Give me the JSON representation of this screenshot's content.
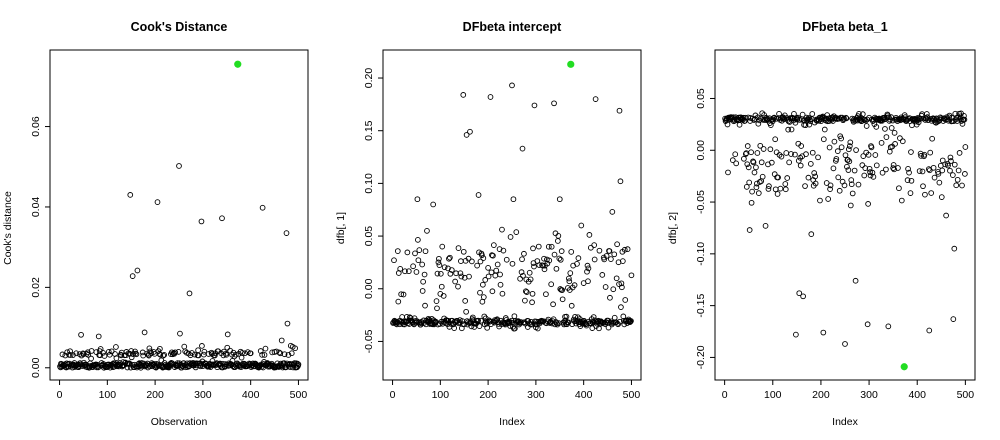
{
  "chart_data": [
    {
      "type": "scatter",
      "title": "Cook's Distance",
      "xlabel": "Observation",
      "ylabel": "Cook's distance",
      "xlim": [
        0,
        500
      ],
      "ylim": [
        0,
        0.076
      ],
      "xticks": [
        0,
        100,
        200,
        300,
        400,
        500
      ],
      "yticks": [
        0.0,
        0.02,
        0.04,
        0.06
      ],
      "ytick_labels": [
        "0.00",
        "0.02",
        "0.04",
        "0.06"
      ],
      "grid": false,
      "marker_color": "#000000",
      "highlight_color": "#22dd22",
      "highlight": {
        "x": 373,
        "y": 0.0755
      },
      "outliers": [
        {
          "x": 148,
          "y": 0.043
        },
        {
          "x": 153,
          "y": 0.0228
        },
        {
          "x": 163,
          "y": 0.0242
        },
        {
          "x": 205,
          "y": 0.0412
        },
        {
          "x": 250,
          "y": 0.0502
        },
        {
          "x": 272,
          "y": 0.0185
        },
        {
          "x": 297,
          "y": 0.0364
        },
        {
          "x": 340,
          "y": 0.0372
        },
        {
          "x": 425,
          "y": 0.0398
        },
        {
          "x": 475,
          "y": 0.0335
        },
        {
          "x": 477,
          "y": 0.011
        },
        {
          "x": 178,
          "y": 0.0088
        },
        {
          "x": 82,
          "y": 0.0078
        },
        {
          "x": 45,
          "y": 0.0082
        },
        {
          "x": 252,
          "y": 0.0085
        },
        {
          "x": 352,
          "y": 0.0083
        },
        {
          "x": 465,
          "y": 0.0068
        },
        {
          "x": 488,
          "y": 0.0052
        }
      ],
      "bulk": {
        "n": 500,
        "seed": 11,
        "ymax": 0.0055
      }
    },
    {
      "type": "scatter",
      "title": "DFbeta intercept",
      "xlabel": "Index",
      "ylabel": "dfb[, 1]",
      "xlim": [
        0,
        500
      ],
      "ylim": [
        -0.075,
        0.215
      ],
      "xticks": [
        0,
        100,
        200,
        300,
        400,
        500
      ],
      "yticks": [
        -0.05,
        0.0,
        0.05,
        0.1,
        0.15,
        0.2
      ],
      "ytick_labels": [
        "-0.05",
        "0.00",
        "0.05",
        "0.10",
        "0.15",
        "0.20"
      ],
      "grid": false,
      "marker_color": "#000000",
      "highlight_color": "#22dd22",
      "highlight": {
        "x": 373,
        "y": 0.213
      },
      "outliers": [
        {
          "x": 148,
          "y": 0.184
        },
        {
          "x": 155,
          "y": 0.146
        },
        {
          "x": 162,
          "y": 0.149
        },
        {
          "x": 205,
          "y": 0.182
        },
        {
          "x": 250,
          "y": 0.193
        },
        {
          "x": 272,
          "y": 0.133
        },
        {
          "x": 297,
          "y": 0.174
        },
        {
          "x": 338,
          "y": 0.176
        },
        {
          "x": 425,
          "y": 0.18
        },
        {
          "x": 475,
          "y": 0.169
        },
        {
          "x": 477,
          "y": 0.102
        },
        {
          "x": 180,
          "y": 0.089
        },
        {
          "x": 52,
          "y": 0.085
        },
        {
          "x": 85,
          "y": 0.08
        },
        {
          "x": 350,
          "y": 0.085
        },
        {
          "x": 460,
          "y": 0.073
        },
        {
          "x": 253,
          "y": 0.085
        }
      ],
      "bulk": {
        "n": 500,
        "seed": 23,
        "band_a": -0.032,
        "band_b": 0.017,
        "spread": 0.035
      }
    },
    {
      "type": "scatter",
      "title": "DFbeta beta_1",
      "xlabel": "Index",
      "ylabel": "dfb[, 2]",
      "xlim": [
        0,
        500
      ],
      "ylim": [
        -0.21,
        0.085
      ],
      "xticks": [
        0,
        100,
        200,
        300,
        400,
        500
      ],
      "yticks": [
        -0.2,
        -0.15,
        -0.1,
        -0.05,
        0.0,
        0.05
      ],
      "ytick_labels": [
        "-0.20",
        "-0.15",
        "-0.10",
        "-0.05",
        "0.00",
        "0.05"
      ],
      "grid": false,
      "marker_color": "#000000",
      "highlight_color": "#22dd22",
      "highlight": {
        "x": 373,
        "y": -0.209
      },
      "outliers": [
        {
          "x": 148,
          "y": -0.178
        },
        {
          "x": 155,
          "y": -0.138
        },
        {
          "x": 163,
          "y": -0.141
        },
        {
          "x": 205,
          "y": -0.176
        },
        {
          "x": 250,
          "y": -0.187
        },
        {
          "x": 272,
          "y": -0.126
        },
        {
          "x": 297,
          "y": -0.168
        },
        {
          "x": 340,
          "y": -0.17
        },
        {
          "x": 425,
          "y": -0.174
        },
        {
          "x": 475,
          "y": -0.163
        },
        {
          "x": 477,
          "y": -0.095
        },
        {
          "x": 180,
          "y": -0.081
        },
        {
          "x": 52,
          "y": -0.077
        },
        {
          "x": 85,
          "y": -0.073
        },
        {
          "x": 460,
          "y": -0.063
        }
      ],
      "bulk": {
        "n": 500,
        "seed": 37,
        "band_a": 0.03,
        "band_b": -0.015,
        "spread": 0.035
      }
    }
  ]
}
